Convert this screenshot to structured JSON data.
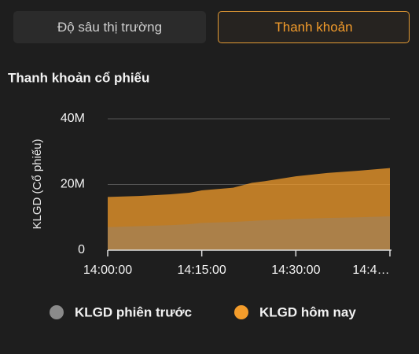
{
  "tabs": [
    "Độ sâu thị trường",
    "Thanh khoản"
  ],
  "chart_data": {
    "type": "area",
    "title": "Thanh khoản cổ phiếu",
    "y_label": "KLGD (Cổ phiếu)",
    "x": [
      "14:00:00",
      "14:05:00",
      "14:10:00",
      "14:13:00",
      "14:15:00",
      "14:20:00",
      "14:23:00",
      "14:25:00",
      "14:30:00",
      "14:35:00",
      "14:40:00",
      "14:45:00"
    ],
    "series": [
      {
        "name": "KLGD phiên trước",
        "color": "#8a8a8a",
        "values": [
          7000000,
          7300000,
          7600000,
          7900000,
          8300000,
          8600000,
          8900000,
          9100000,
          9500000,
          9800000,
          10000000,
          10300000
        ]
      },
      {
        "name": "KLGD hôm nay",
        "color": "#f39c2b",
        "values": [
          16200000,
          16500000,
          17000000,
          17500000,
          18200000,
          19000000,
          20500000,
          21000000,
          22500000,
          23500000,
          24200000,
          25000000
        ]
      }
    ],
    "xlim": [
      "14:00:00",
      "14:45:00"
    ],
    "xticks": [
      "14:00:00",
      "14:15:00",
      "14:30:00",
      {
        "value": "14:45:00",
        "label": "14:4…"
      }
    ],
    "ylim": [
      0,
      40000000
    ],
    "yticks": [
      0,
      {
        "value": 20000000,
        "label": "20M"
      },
      {
        "value": 40000000,
        "label": "40M"
      }
    ],
    "grid": true
  }
}
